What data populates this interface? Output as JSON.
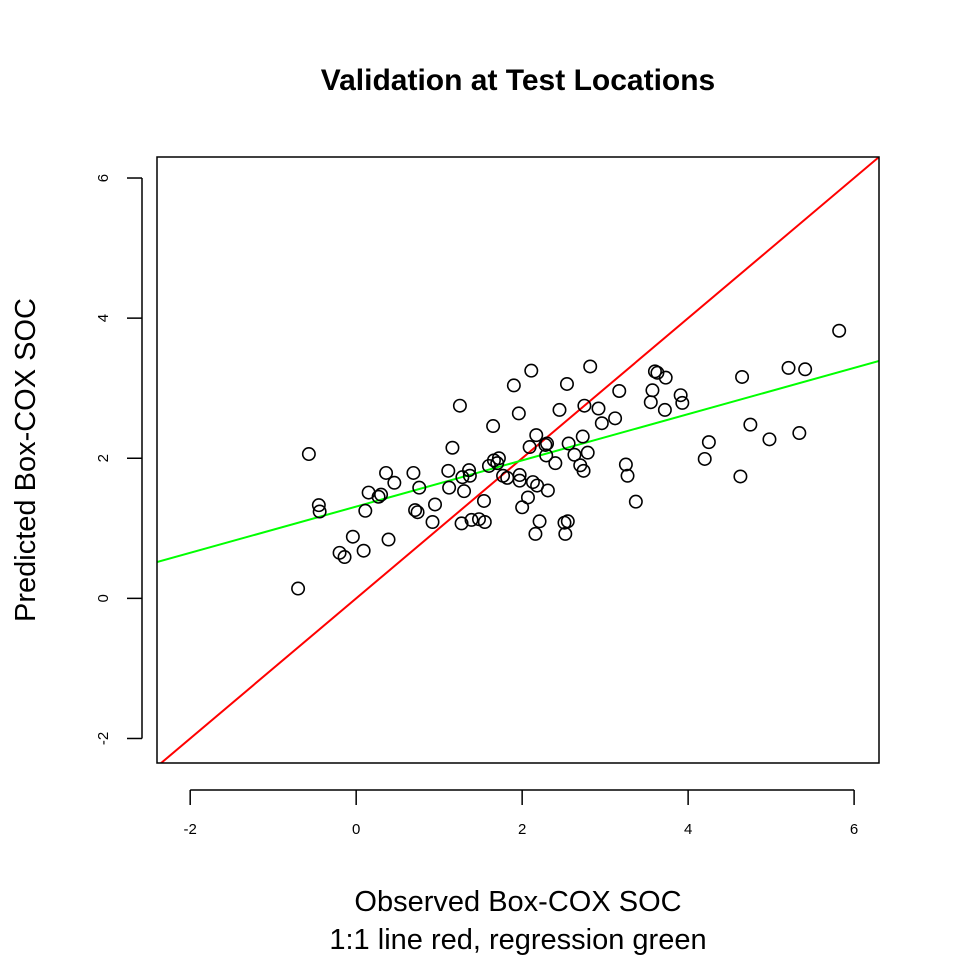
{
  "chart_data": {
    "type": "scatter",
    "title": "Validation at Test Locations",
    "xlabel": "Observed Box-COX SOC",
    "xlabel_line2": "1:1 line red, regression green",
    "ylabel": "Predicted Box-COX SOC",
    "xlim": [
      -2.4,
      6.3
    ],
    "ylim": [
      -2.35,
      6.3
    ],
    "xticks": [
      -2,
      0,
      2,
      4,
      6
    ],
    "yticks": [
      -2,
      0,
      2,
      4,
      6
    ],
    "grid": false,
    "colors": {
      "one_to_one": "#ff0000",
      "regression": "#00ff00",
      "points": "#000000"
    },
    "lines": [
      {
        "name": "1:1 line",
        "color": "#ff0000",
        "intercept": 0,
        "slope": 1
      },
      {
        "name": "regression",
        "color": "#00ff00",
        "intercept": 1.31,
        "slope": 0.33
      }
    ],
    "points": [
      [
        -0.7,
        0.14
      ],
      [
        -0.57,
        2.06
      ],
      [
        -0.45,
        1.33
      ],
      [
        -0.44,
        1.24
      ],
      [
        -0.2,
        0.65
      ],
      [
        -0.14,
        0.59
      ],
      [
        -0.04,
        0.88
      ],
      [
        0.09,
        0.68
      ],
      [
        0.11,
        1.25
      ],
      [
        0.15,
        1.51
      ],
      [
        0.27,
        1.45
      ],
      [
        0.3,
        1.48
      ],
      [
        0.36,
        1.79
      ],
      [
        0.39,
        0.84
      ],
      [
        0.46,
        1.65
      ],
      [
        0.69,
        1.79
      ],
      [
        0.71,
        1.26
      ],
      [
        0.74,
        1.23
      ],
      [
        0.76,
        1.58
      ],
      [
        0.92,
        1.09
      ],
      [
        0.95,
        1.34
      ],
      [
        1.11,
        1.82
      ],
      [
        1.12,
        1.58
      ],
      [
        1.16,
        2.15
      ],
      [
        1.25,
        2.75
      ],
      [
        1.27,
        1.07
      ],
      [
        1.28,
        1.73
      ],
      [
        1.3,
        1.53
      ],
      [
        1.36,
        1.83
      ],
      [
        1.37,
        1.75
      ],
      [
        1.39,
        1.12
      ],
      [
        1.48,
        1.13
      ],
      [
        1.54,
        1.39
      ],
      [
        1.55,
        1.09
      ],
      [
        1.6,
        1.89
      ],
      [
        1.65,
        2.46
      ],
      [
        1.66,
        1.97
      ],
      [
        1.7,
        1.93
      ],
      [
        1.72,
        2.0
      ],
      [
        1.77,
        1.75
      ],
      [
        1.82,
        1.72
      ],
      [
        1.9,
        3.04
      ],
      [
        1.96,
        2.64
      ],
      [
        1.97,
        1.68
      ],
      [
        1.97,
        1.76
      ],
      [
        2.0,
        1.3
      ],
      [
        2.07,
        1.44
      ],
      [
        2.09,
        2.16
      ],
      [
        2.11,
        3.25
      ],
      [
        2.13,
        1.66
      ],
      [
        2.16,
        0.92
      ],
      [
        2.17,
        2.33
      ],
      [
        2.18,
        1.61
      ],
      [
        2.21,
        1.1
      ],
      [
        2.28,
        2.19
      ],
      [
        2.29,
        2.04
      ],
      [
        2.3,
        2.21
      ],
      [
        2.31,
        1.54
      ],
      [
        2.4,
        1.93
      ],
      [
        2.45,
        2.69
      ],
      [
        2.51,
        1.08
      ],
      [
        2.52,
        0.92
      ],
      [
        2.54,
        3.06
      ],
      [
        2.55,
        1.1
      ],
      [
        2.56,
        2.21
      ],
      [
        2.63,
        2.05
      ],
      [
        2.7,
        1.9
      ],
      [
        2.73,
        2.31
      ],
      [
        2.74,
        1.82
      ],
      [
        2.75,
        2.75
      ],
      [
        2.79,
        2.08
      ],
      [
        2.82,
        3.31
      ],
      [
        2.92,
        2.71
      ],
      [
        2.96,
        2.5
      ],
      [
        3.12,
        2.57
      ],
      [
        3.17,
        2.96
      ],
      [
        3.25,
        1.91
      ],
      [
        3.27,
        1.75
      ],
      [
        3.37,
        1.38
      ],
      [
        3.55,
        2.8
      ],
      [
        3.57,
        2.97
      ],
      [
        3.6,
        3.24
      ],
      [
        3.63,
        3.22
      ],
      [
        3.72,
        2.69
      ],
      [
        3.73,
        3.15
      ],
      [
        3.91,
        2.9
      ],
      [
        3.93,
        2.79
      ],
      [
        4.2,
        1.99
      ],
      [
        4.25,
        2.23
      ],
      [
        4.63,
        1.74
      ],
      [
        4.65,
        3.16
      ],
      [
        4.75,
        2.48
      ],
      [
        4.98,
        2.27
      ],
      [
        5.21,
        3.29
      ],
      [
        5.34,
        2.36
      ],
      [
        5.41,
        3.27
      ],
      [
        5.82,
        3.82
      ]
    ]
  }
}
